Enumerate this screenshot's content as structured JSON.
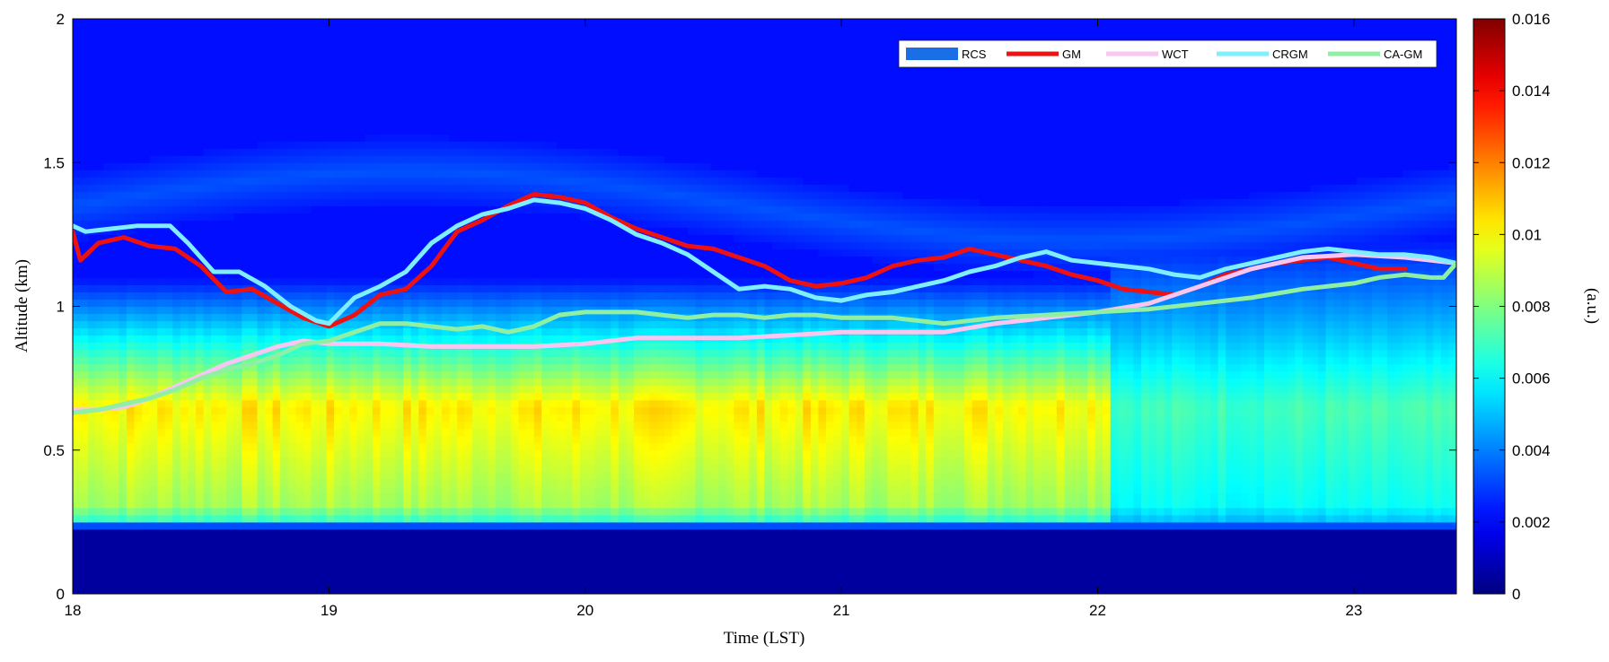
{
  "chart_data": {
    "type": "heatmap",
    "xlabel": "Time (LST)",
    "ylabel": "Altitude (km)",
    "colorbar_label": "(a.u.)",
    "xlim": [
      18,
      23.4
    ],
    "ylim": [
      0,
      2
    ],
    "x_ticks": [
      "18",
      "19",
      "20",
      "21",
      "22",
      "23"
    ],
    "y_ticks": [
      "0",
      "0.5",
      "1",
      "1.5",
      "2"
    ],
    "colorbar_range": [
      0,
      0.016
    ],
    "colorbar_ticks": [
      "0",
      "0.002",
      "0.004",
      "0.006",
      "0.008",
      "0.01",
      "0.012",
      "0.014",
      "0.016"
    ],
    "colormap": "jet",
    "legend_position": "top-right",
    "legend": [
      "RCS",
      "GM",
      "WCT",
      "CRGM",
      "CA-GM"
    ],
    "heatmap_description": {
      "surface_band_km": [
        0,
        0.22,
        0.0005
      ],
      "aerosol_layer": {
        "from_km": 0.3,
        "top_km": 0.85,
        "peak_value": 0.0105,
        "peak_altitude_km": 0.65
      },
      "after_2205_peak_value": 0.0072,
      "elevated_layer_km": [
        1.25,
        1.45
      ],
      "background_value": 0.0022
    },
    "series": [
      {
        "name": "GM",
        "color": "#ee1111",
        "x": [
          18.0,
          18.03,
          18.1,
          18.2,
          18.3,
          18.4,
          18.5,
          18.6,
          18.7,
          18.8,
          18.9,
          19.0,
          19.1,
          19.2,
          19.3,
          19.4,
          19.5,
          19.6,
          19.7,
          19.8,
          19.9,
          20.0,
          20.1,
          20.2,
          20.3,
          20.4,
          20.5,
          20.6,
          20.7,
          20.8,
          20.9,
          21.0,
          21.1,
          21.2,
          21.3,
          21.4,
          21.5,
          21.6,
          21.7,
          21.8,
          21.9,
          22.0,
          22.1,
          22.2,
          22.3,
          22.4,
          22.5,
          22.6,
          22.7,
          22.8,
          22.9,
          23.0,
          23.1,
          23.2
        ],
        "y": [
          1.26,
          1.16,
          1.22,
          1.24,
          1.21,
          1.2,
          1.14,
          1.05,
          1.06,
          1.01,
          0.96,
          0.93,
          0.97,
          1.04,
          1.06,
          1.14,
          1.26,
          1.3,
          1.35,
          1.39,
          1.38,
          1.36,
          1.31,
          1.27,
          1.24,
          1.21,
          1.2,
          1.17,
          1.14,
          1.09,
          1.07,
          1.08,
          1.1,
          1.14,
          1.16,
          1.17,
          1.2,
          1.18,
          1.16,
          1.14,
          1.11,
          1.09,
          1.06,
          1.05,
          1.04,
          1.07,
          1.11,
          1.13,
          1.15,
          1.16,
          1.17,
          1.15,
          1.13,
          1.13
        ]
      },
      {
        "name": "WCT",
        "color": "#f8c6f0",
        "x": [
          18.0,
          18.1,
          18.2,
          18.3,
          18.4,
          18.5,
          18.6,
          18.7,
          18.8,
          18.9,
          19.0,
          19.2,
          19.4,
          19.6,
          19.8,
          20.0,
          20.2,
          20.4,
          20.6,
          20.8,
          21.0,
          21.2,
          21.4,
          21.6,
          21.8,
          22.0,
          22.2,
          22.4,
          22.6,
          22.8,
          23.0,
          23.2,
          23.4
        ],
        "y": [
          0.64,
          0.64,
          0.65,
          0.68,
          0.72,
          0.76,
          0.8,
          0.83,
          0.86,
          0.88,
          0.87,
          0.87,
          0.86,
          0.86,
          0.86,
          0.87,
          0.89,
          0.89,
          0.89,
          0.9,
          0.91,
          0.91,
          0.91,
          0.94,
          0.96,
          0.98,
          1.01,
          1.07,
          1.13,
          1.17,
          1.18,
          1.17,
          1.15
        ]
      },
      {
        "name": "CRGM",
        "color": "#7fefff",
        "x": [
          18.0,
          18.05,
          18.15,
          18.25,
          18.38,
          18.45,
          18.55,
          18.65,
          18.75,
          18.85,
          18.95,
          19.0,
          19.1,
          19.2,
          19.3,
          19.4,
          19.5,
          19.6,
          19.7,
          19.8,
          19.9,
          20.0,
          20.1,
          20.2,
          20.3,
          20.4,
          20.5,
          20.6,
          20.7,
          20.8,
          20.9,
          21.0,
          21.1,
          21.2,
          21.3,
          21.4,
          21.5,
          21.6,
          21.7,
          21.8,
          21.9,
          22.0,
          22.1,
          22.2,
          22.3,
          22.4,
          22.5,
          22.6,
          22.7,
          22.8,
          22.9,
          23.0,
          23.1,
          23.2,
          23.3,
          23.4
        ],
        "y": [
          1.28,
          1.26,
          1.27,
          1.28,
          1.28,
          1.22,
          1.12,
          1.12,
          1.07,
          1.0,
          0.95,
          0.94,
          1.03,
          1.07,
          1.12,
          1.22,
          1.28,
          1.32,
          1.34,
          1.37,
          1.36,
          1.34,
          1.3,
          1.25,
          1.22,
          1.18,
          1.12,
          1.06,
          1.07,
          1.06,
          1.03,
          1.02,
          1.04,
          1.05,
          1.07,
          1.09,
          1.12,
          1.14,
          1.17,
          1.19,
          1.16,
          1.15,
          1.14,
          1.13,
          1.11,
          1.1,
          1.13,
          1.15,
          1.17,
          1.19,
          1.2,
          1.19,
          1.18,
          1.18,
          1.17,
          1.15
        ]
      },
      {
        "name": "CA-GM",
        "color": "#8ff0a4",
        "x": [
          18.0,
          18.1,
          18.2,
          18.3,
          18.4,
          18.5,
          18.6,
          18.7,
          18.8,
          18.9,
          19.0,
          19.1,
          19.2,
          19.3,
          19.4,
          19.5,
          19.6,
          19.7,
          19.8,
          19.9,
          20.0,
          20.1,
          20.2,
          20.3,
          20.4,
          20.5,
          20.6,
          20.7,
          20.8,
          20.9,
          21.0,
          21.2,
          21.4,
          21.6,
          21.8,
          22.0,
          22.2,
          22.4,
          22.6,
          22.8,
          23.0,
          23.1,
          23.2,
          23.3,
          23.35,
          23.4
        ],
        "y": [
          0.63,
          0.64,
          0.66,
          0.68,
          0.71,
          0.75,
          0.78,
          0.8,
          0.83,
          0.87,
          0.88,
          0.91,
          0.94,
          0.94,
          0.93,
          0.92,
          0.93,
          0.91,
          0.93,
          0.97,
          0.98,
          0.98,
          0.98,
          0.97,
          0.96,
          0.97,
          0.97,
          0.96,
          0.97,
          0.97,
          0.96,
          0.96,
          0.94,
          0.96,
          0.97,
          0.98,
          0.99,
          1.01,
          1.03,
          1.06,
          1.08,
          1.1,
          1.11,
          1.1,
          1.1,
          1.15
        ]
      }
    ]
  }
}
